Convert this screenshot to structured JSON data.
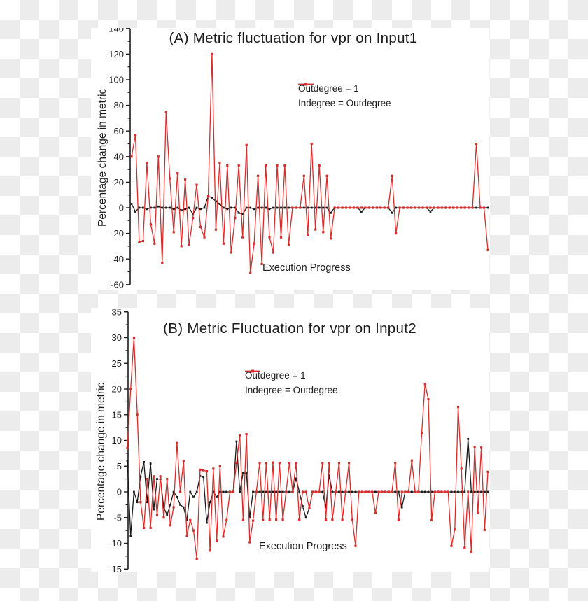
{
  "figure": {
    "background_checker_color": "#ececec",
    "panel_color": "#ffffff",
    "axis_color": "#1c1c1c",
    "series_colors": {
      "outdegree1": "#1a1a1a",
      "indegree_outdegree": "#d92c2c"
    }
  },
  "chart_data": [
    {
      "id": "A",
      "type": "line",
      "title": "(A) Metric fluctuation for vpr on Input1",
      "xlabel": "Execution Progress",
      "ylabel": "Percentage change in metric",
      "ylim": [
        -60,
        140
      ],
      "yticks": [
        140,
        120,
        100,
        80,
        60,
        40,
        20,
        0,
        -20,
        -40,
        -60
      ],
      "x_unit": "execution progress step (no x tick labels shown)",
      "grid": false,
      "legend_position": "upper right inside plot",
      "legend": [
        {
          "name": "Outdegree = 1",
          "color": "#1a1a1a"
        },
        {
          "name": "Indegree = Outdegree",
          "color": "#d92c2c"
        }
      ],
      "series": [
        {
          "name": "Outdegree = 1",
          "color": "#1a1a1a",
          "values": [
            3,
            -3,
            0,
            0,
            -1,
            0,
            0,
            1,
            0,
            0,
            0,
            -1,
            0,
            -2,
            -1,
            0,
            -5,
            0,
            -1,
            0,
            9,
            8,
            5,
            3,
            0,
            -1,
            0,
            0,
            -4,
            -5,
            0,
            0,
            -1,
            0,
            0,
            0,
            -1,
            0,
            0,
            0,
            0,
            0,
            0,
            0,
            0,
            0,
            0,
            0,
            0,
            0,
            0,
            0,
            -4,
            0,
            0,
            0,
            0,
            0,
            0,
            0,
            -3,
            0,
            0,
            0,
            0,
            0,
            0,
            0,
            -4,
            0,
            0,
            0,
            0,
            0,
            0,
            0,
            0,
            0,
            -3,
            0,
            0,
            0,
            0,
            0,
            0,
            0,
            0,
            0,
            0,
            0,
            0,
            0,
            0,
            0
          ]
        },
        {
          "name": "Indegree = Outdegree",
          "color": "#d92c2c",
          "values": [
            40,
            57,
            -27,
            -26,
            35,
            -13,
            -28,
            40,
            -43,
            75,
            23,
            -19,
            27,
            -30,
            22,
            -29,
            -8,
            18,
            -15,
            -23,
            9,
            120,
            -17,
            35,
            -28,
            33,
            -35,
            -8,
            33,
            -23,
            49,
            -51,
            -28,
            25,
            -44,
            33,
            -23,
            -35,
            33,
            -23,
            33,
            -29,
            0,
            0,
            0,
            25,
            -21,
            50,
            -17,
            33,
            -19,
            25,
            -24,
            0,
            0,
            0,
            0,
            0,
            0,
            0,
            0,
            0,
            0,
            0,
            0,
            0,
            0,
            0,
            25,
            -20,
            0,
            0,
            0,
            0,
            0,
            0,
            0,
            0,
            0,
            0,
            0,
            0,
            0,
            0,
            0,
            0,
            0,
            0,
            0,
            0,
            50,
            0,
            0,
            -33
          ]
        }
      ]
    },
    {
      "id": "B",
      "type": "line",
      "title": "(B) Metric Fluctuation for vpr on Input2",
      "xlabel": "Execution Progress",
      "ylabel": "Percentage change in metric",
      "ylim": [
        -15,
        35
      ],
      "yticks": [
        35,
        30,
        25,
        20,
        15,
        10,
        5,
        0,
        -5,
        -10,
        -15
      ],
      "x_unit": "execution progress step (no x tick labels shown)",
      "grid": false,
      "legend_position": "upper center inside plot",
      "legend": [
        {
          "name": "Outdegree = 1",
          "color": "#1a1a1a"
        },
        {
          "name": "Indegree = Outdegree",
          "color": "#d92c2c"
        }
      ],
      "series": [
        {
          "name": "Outdegree = 1",
          "color": "#1a1a1a",
          "values": [
            6,
            -8.5,
            0,
            -2,
            3,
            5.8,
            -2,
            5.5,
            -3.4,
            2.5,
            2.5,
            -3,
            -4.5,
            -2.5,
            0,
            -1,
            -2.5,
            -3,
            -5.5,
            0,
            -1,
            0,
            3.1,
            2.9,
            -6,
            -2,
            0,
            -1,
            0,
            0,
            0,
            0,
            0,
            9.8,
            0,
            3.7,
            3.6,
            -5,
            0,
            0,
            0,
            0,
            0,
            0,
            0,
            0,
            0,
            0,
            0,
            0,
            0,
            2.6,
            0,
            -2.8,
            -5,
            -3.2,
            0,
            0,
            0,
            0,
            -3,
            3.2,
            0,
            0,
            0,
            0,
            0,
            0,
            0,
            0,
            0,
            0,
            0,
            0,
            0,
            0,
            0,
            0,
            0,
            0,
            0,
            0,
            0,
            -3,
            0,
            0,
            0,
            0,
            0,
            0,
            0,
            0,
            0,
            0,
            0,
            0,
            0,
            0,
            0,
            0,
            0,
            0,
            0,
            10.3,
            0,
            0,
            0,
            0,
            0,
            0
          ]
        },
        {
          "name": "Indegree = Outdegree",
          "color": "#d92c2c",
          "values": [
            8.5,
            20,
            30,
            15,
            -2,
            -7,
            2.5,
            -7,
            3,
            -4.5,
            3,
            -5,
            2.5,
            -6.5,
            -3,
            9.5,
            0,
            6,
            -8.5,
            -5.5,
            -7.5,
            -13,
            4.3,
            4.2,
            4,
            -11.4,
            4.5,
            -9.5,
            5,
            -8.7,
            -5.5,
            0,
            0,
            5.6,
            11,
            -5.5,
            11.2,
            -9.8,
            -5.6,
            0,
            5.6,
            -5.5,
            5.6,
            -5.4,
            5.7,
            -5.4,
            5.6,
            -5.4,
            0,
            5.6,
            0,
            5.6,
            -5.4,
            0,
            0,
            -3.2,
            0,
            0,
            0,
            5.6,
            -5.4,
            5.6,
            -5.4,
            0,
            5.6,
            -5.4,
            0,
            5.6,
            -5.4,
            -10.5,
            0,
            0,
            0,
            0,
            0,
            -4.1,
            0,
            0,
            0,
            0,
            0,
            5.6,
            -5.4,
            0,
            0,
            0,
            6.1,
            0,
            0,
            11.4,
            21,
            18,
            -5.5,
            0,
            0,
            0,
            0,
            0,
            -10.5,
            -7.3,
            16.5,
            4.5,
            -10.8,
            0,
            -11.6,
            8.7,
            -4.1,
            8.6,
            -7.4,
            3.9
          ]
        }
      ]
    }
  ]
}
